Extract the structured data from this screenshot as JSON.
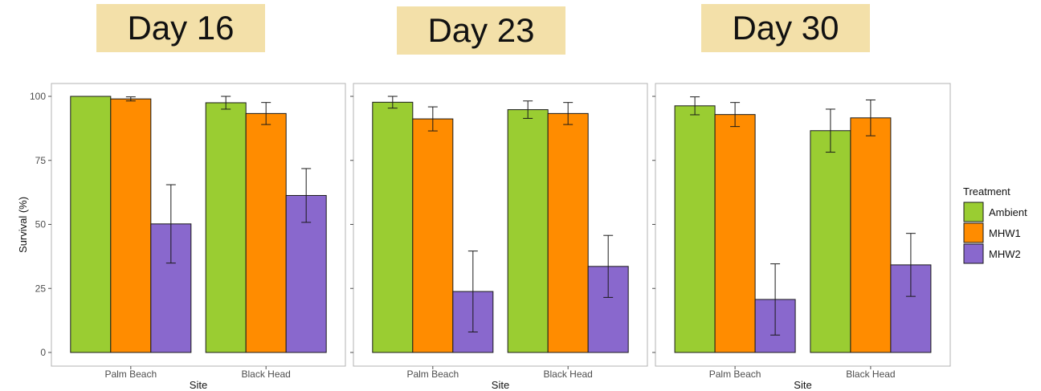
{
  "days": [
    "Day 16",
    "Day 23",
    "Day 30"
  ],
  "colors": {
    "Ambient": "#9acd32",
    "MHW1": "#ff8c00",
    "MHW2": "#8968cd",
    "day_box": "#f3e0a9"
  },
  "chart_data": {
    "type": "bar",
    "ylabel": "Survival (%)",
    "xlabel": "Site",
    "ylim": [
      0,
      100
    ],
    "yticks": [
      0,
      25,
      50,
      75,
      100
    ],
    "legend": {
      "title": "Treatment",
      "entries": [
        "Ambient",
        "MHW1",
        "MHW2"
      ],
      "placement": "right"
    },
    "panels": [
      {
        "facet": "Day 16",
        "categories": [
          "Palm Beach",
          "Black Head"
        ],
        "series": [
          {
            "name": "Ambient",
            "values": [
              100,
              97.5
            ],
            "error": [
              0,
              2.5
            ]
          },
          {
            "name": "MHW1",
            "values": [
              99,
              93.3
            ],
            "error": [
              0.8,
              4.3
            ]
          },
          {
            "name": "MHW2",
            "values": [
              50.2,
              61.3
            ],
            "error": [
              15.3,
              10.5
            ]
          }
        ]
      },
      {
        "facet": "Day 23",
        "categories": [
          "Palm Beach",
          "Black Head"
        ],
        "series": [
          {
            "name": "Ambient",
            "values": [
              97.7,
              94.8
            ],
            "error": [
              2.3,
              3.4
            ]
          },
          {
            "name": "MHW1",
            "values": [
              91.2,
              93.3
            ],
            "error": [
              4.7,
              4.3
            ]
          },
          {
            "name": "MHW2",
            "values": [
              23.8,
              33.6
            ],
            "error": [
              15.8,
              12.1
            ]
          }
        ]
      },
      {
        "facet": "Day 30",
        "categories": [
          "Palm Beach",
          "Black Head"
        ],
        "series": [
          {
            "name": "Ambient",
            "values": [
              96.3,
              86.6
            ],
            "error": [
              3.5,
              8.4
            ]
          },
          {
            "name": "MHW1",
            "values": [
              92.9,
              91.6
            ],
            "error": [
              4.7,
              7.0
            ]
          },
          {
            "name": "MHW2",
            "values": [
              20.7,
              34.2
            ],
            "error": [
              13.9,
              12.3
            ]
          }
        ]
      }
    ]
  }
}
